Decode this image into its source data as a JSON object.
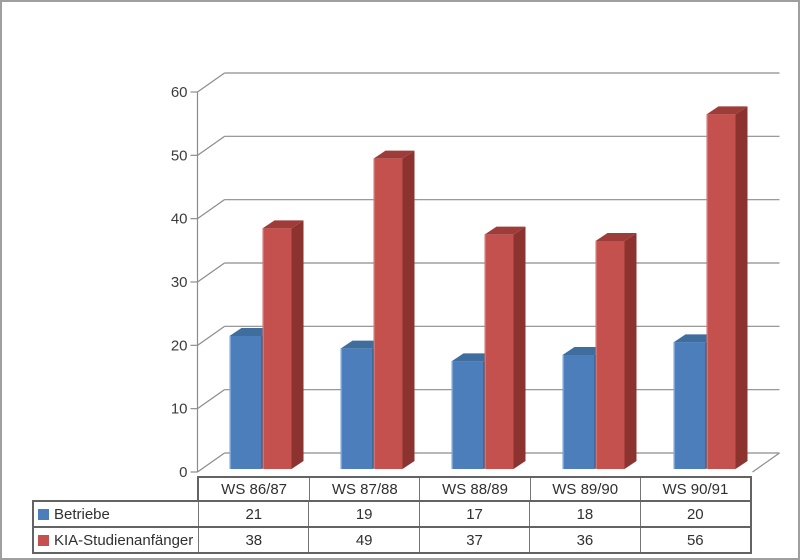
{
  "chart_data": {
    "type": "bar",
    "style": "3d-clustered-column",
    "title": "",
    "xlabel": "",
    "ylabel": "",
    "categories": [
      "WS 86/87",
      "WS 87/88",
      "WS 88/89",
      "WS 89/90",
      "WS 90/91"
    ],
    "series": [
      {
        "name": "Betriebe",
        "values": [
          21,
          19,
          17,
          18,
          20
        ],
        "color": "#4d7ebc"
      },
      {
        "name": "KIA-Studienanfänger",
        "values": [
          38,
          49,
          37,
          36,
          56
        ],
        "color": "#c4514e"
      }
    ],
    "ylim": [
      0,
      60
    ],
    "ytick_step": 10,
    "ytick_labels": [
      "0",
      "10",
      "20",
      "30",
      "40",
      "50",
      "60"
    ],
    "grid": true,
    "legend_position": "data-table-left"
  },
  "colors": {
    "blue_front": "#4d7ebc",
    "blue_top": "#3e6d9e",
    "blue_side": "#30567e",
    "blue_highlight": "#7ba3d4",
    "red_front": "#c4514e",
    "red_top": "#9e3c39",
    "red_side": "#8c3330",
    "red_highlight": "#d0726f",
    "gridline": "#8c8c8c",
    "axis_text": "#3c3c3c",
    "table_border_outer": "#636363",
    "table_border_inner": "#757575",
    "frame_border": "#9f9f9f"
  }
}
